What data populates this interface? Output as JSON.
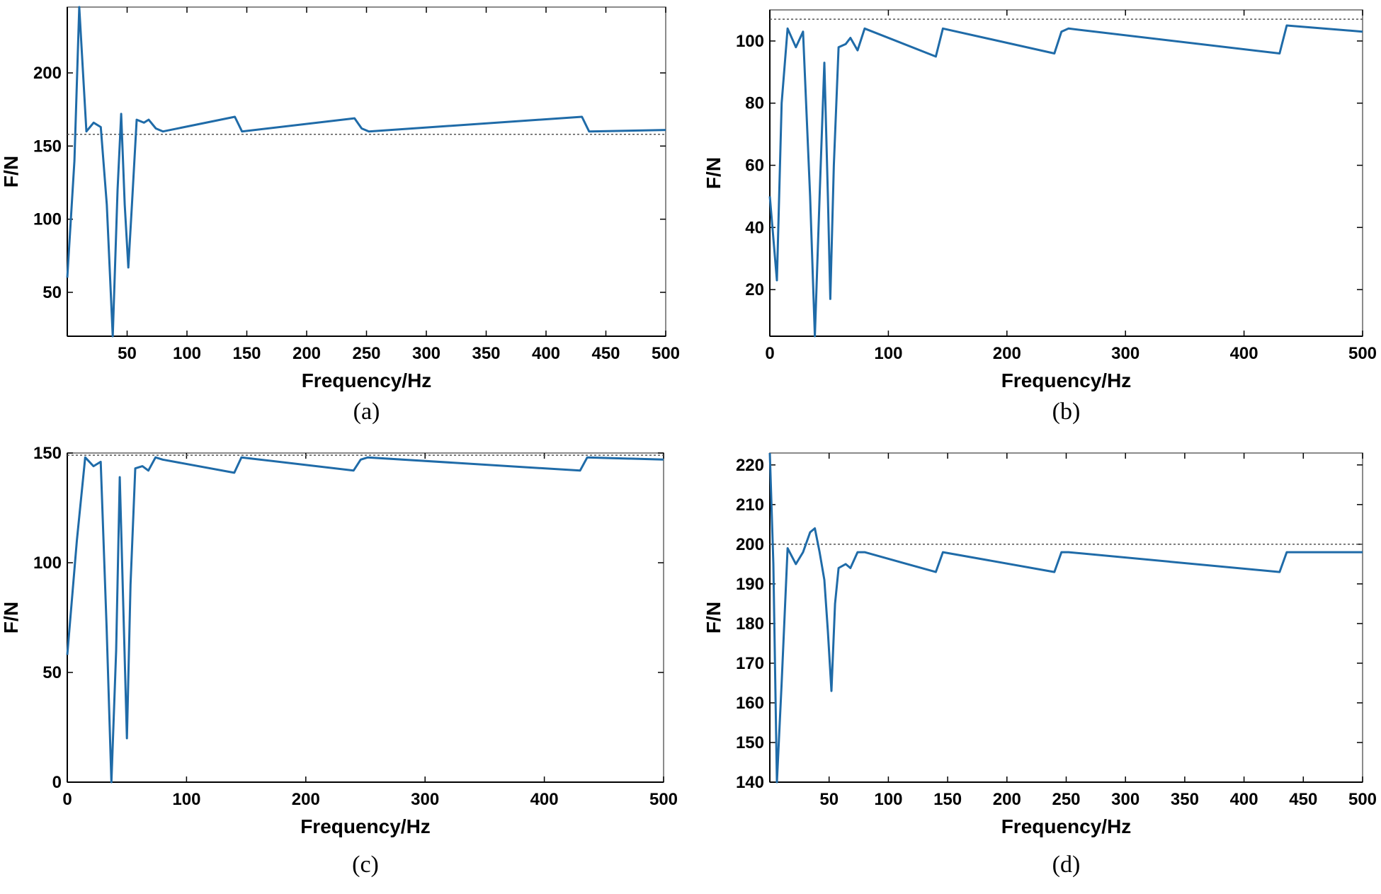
{
  "colors": {
    "series": "#1f6ba8",
    "ref": "#555555",
    "axis": "#000000"
  },
  "chart_data": [
    {
      "type": "line",
      "caption": "(a)",
      "xlabel": "Frequency/Hz",
      "ylabel": "F/N",
      "xlim": [
        0,
        500
      ],
      "ylim": [
        20,
        245
      ],
      "xticks": [
        50,
        100,
        150,
        200,
        250,
        300,
        350,
        400,
        450,
        500
      ],
      "yticks": [
        50,
        100,
        150,
        200
      ],
      "reference": 158,
      "series": [
        {
          "name": "F",
          "x": [
            0,
            6,
            10,
            16,
            22,
            28,
            33,
            38,
            42,
            45,
            48,
            51,
            54,
            58,
            64,
            68,
            74,
            80,
            140,
            146,
            240,
            246,
            252,
            430,
            436,
            500
          ],
          "y": [
            60,
            140,
            245,
            160,
            166,
            163,
            110,
            20,
            120,
            172,
            110,
            67,
            110,
            168,
            166,
            168,
            162,
            160,
            170,
            160,
            169,
            162,
            160,
            170,
            160,
            161
          ]
        }
      ]
    },
    {
      "type": "line",
      "caption": "(b)",
      "xlabel": "Frequency/Hz",
      "ylabel": "F/N",
      "xlim": [
        0,
        500
      ],
      "ylim": [
        5,
        110
      ],
      "xticks": [
        0,
        100,
        200,
        300,
        400,
        500
      ],
      "yticks": [
        20,
        40,
        60,
        80,
        100
      ],
      "reference": 107,
      "series": [
        {
          "name": "F",
          "x": [
            0,
            6,
            10,
            15,
            22,
            28,
            34,
            38,
            42,
            46,
            49,
            51,
            54,
            58,
            64,
            68,
            74,
            80,
            140,
            146,
            240,
            246,
            252,
            430,
            436,
            500
          ],
          "y": [
            50,
            23,
            80,
            104,
            98,
            103,
            50,
            5,
            50,
            93,
            50,
            17,
            60,
            98,
            99,
            101,
            97,
            104,
            95,
            104,
            96,
            103,
            104,
            96,
            105,
            103
          ]
        }
      ]
    },
    {
      "type": "line",
      "caption": "(c)",
      "xlabel": "Frequency/Hz",
      "ylabel": "F/N",
      "xlim": [
        0,
        500
      ],
      "ylim": [
        0,
        150
      ],
      "xticks": [
        0,
        100,
        200,
        300,
        400,
        500
      ],
      "yticks": [
        0,
        50,
        100,
        150
      ],
      "reference": 149,
      "series": [
        {
          "name": "F",
          "x": [
            0,
            8,
            15,
            22,
            28,
            33,
            37,
            41,
            44,
            47,
            50,
            53,
            57,
            63,
            68,
            74,
            80,
            140,
            146,
            240,
            246,
            252,
            430,
            436,
            500
          ],
          "y": [
            58,
            110,
            148,
            144,
            146,
            70,
            0,
            60,
            139,
            80,
            20,
            90,
            143,
            144,
            142,
            148,
            147,
            141,
            148,
            142,
            147,
            148,
            142,
            148,
            147
          ]
        }
      ]
    },
    {
      "type": "line",
      "caption": "(d)",
      "xlabel": "Frequency/Hz",
      "ylabel": "F/N",
      "xlim": [
        0,
        500
      ],
      "ylim": [
        140,
        223
      ],
      "xticks": [
        50,
        100,
        150,
        200,
        250,
        300,
        350,
        400,
        450,
        500
      ],
      "yticks": [
        140,
        150,
        160,
        170,
        180,
        190,
        200,
        210,
        220
      ],
      "reference": 200,
      "series": [
        {
          "name": "F",
          "x": [
            0,
            3,
            6,
            10,
            15,
            22,
            28,
            34,
            38,
            42,
            46,
            49,
            52,
            55,
            58,
            64,
            68,
            74,
            80,
            140,
            146,
            240,
            246,
            252,
            430,
            436,
            500
          ],
          "y": [
            223,
            195,
            140,
            165,
            199,
            195,
            198,
            203,
            204,
            198,
            191,
            178,
            163,
            185,
            194,
            195,
            194,
            198,
            198,
            193,
            198,
            193,
            198,
            198,
            193,
            198,
            198
          ]
        }
      ]
    }
  ]
}
